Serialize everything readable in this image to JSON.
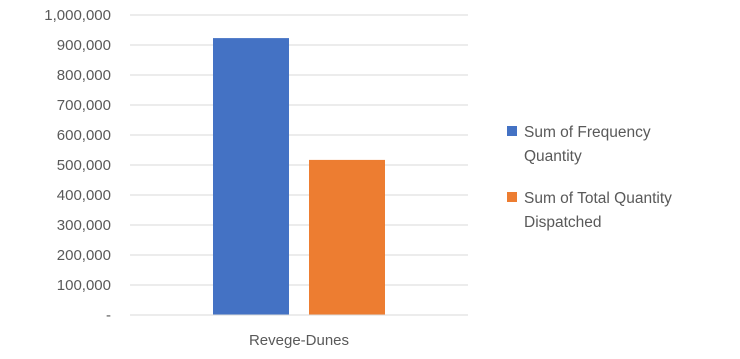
{
  "chart_data": {
    "type": "bar",
    "title": "",
    "xlabel": "",
    "ylabel": "",
    "categories": [
      "Revege-Dunes"
    ],
    "series": [
      {
        "name": "Sum of Frequency Quantity",
        "color": "#4472C4",
        "values": [
          923000
        ]
      },
      {
        "name": "Sum of Total Quantity Dispatched",
        "color": "#ED7D31",
        "values": [
          517000
        ]
      }
    ],
    "ylim": [
      0,
      1000000
    ],
    "y_ticks": [
      0,
      100000,
      200000,
      300000,
      400000,
      500000,
      600000,
      700000,
      800000,
      900000,
      1000000
    ],
    "y_tick_labels": [
      "-",
      "100,000",
      "200,000",
      "300,000",
      "400,000",
      "500,000",
      "600,000",
      "700,000",
      "800,000",
      "900,000",
      "1,000,000"
    ],
    "grid": true,
    "legend_position": "right",
    "legend_lines": [
      [
        "Sum of Frequency",
        "Quantity"
      ],
      [
        "Sum of Total Quantity",
        "Dispatched"
      ]
    ]
  }
}
